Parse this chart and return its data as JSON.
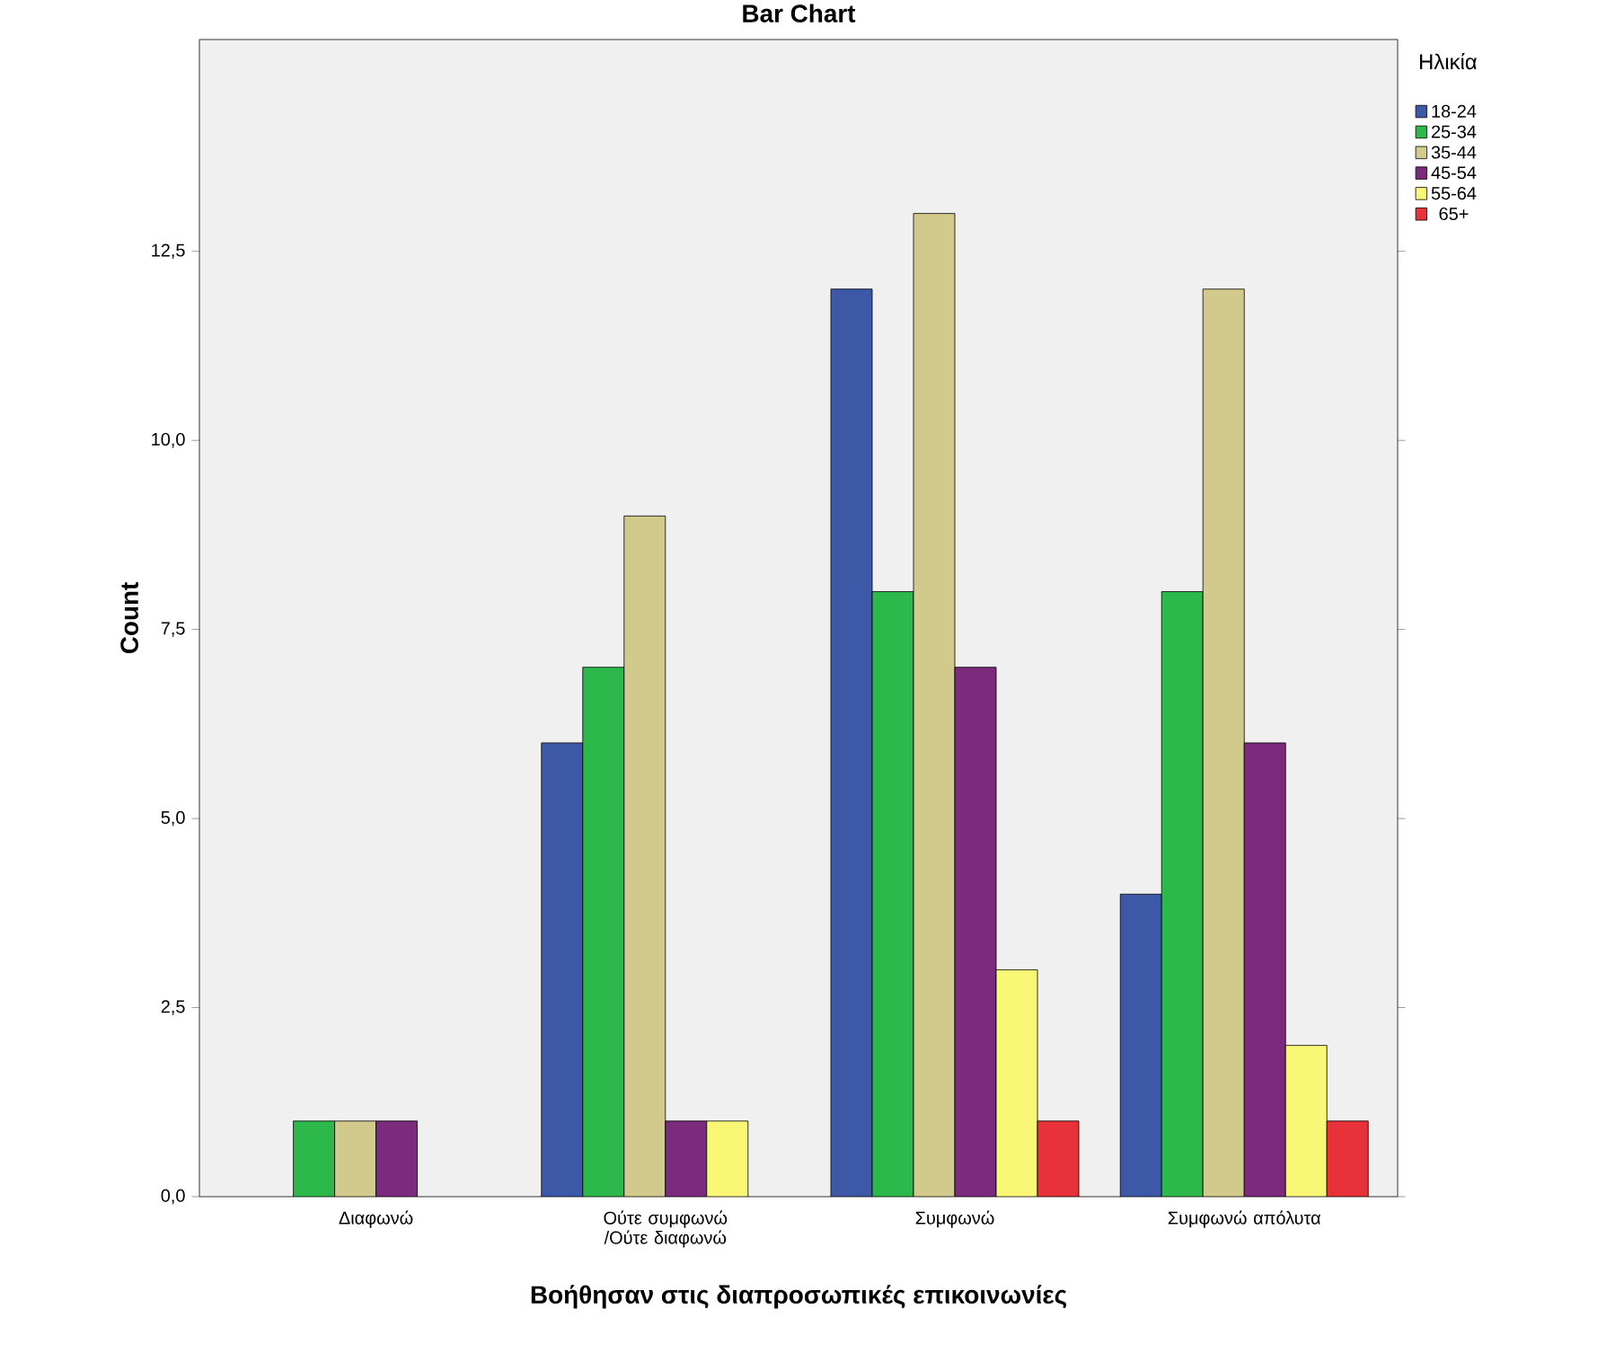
{
  "chart_data": {
    "type": "bar",
    "title": "Bar Chart",
    "xlabel": "Βοήθησαν στις διαπροσωπικές επικοινωνίες",
    "ylabel": "Count",
    "legend_title": "Ηλικία",
    "legend": "top right",
    "grid": false,
    "categories": [
      "Διαφωνώ",
      "Ούτε συμφωνώ /Ούτε διαφωνώ",
      "Συμφωνώ",
      "Συμφωνώ απόλυτα"
    ],
    "ylim": [
      0,
      15.3
    ],
    "yticks": [
      {
        "value": 0,
        "label": "0,0"
      },
      {
        "value": 2.5,
        "label": "2,5"
      },
      {
        "value": 5,
        "label": "5,0"
      },
      {
        "value": 7.5,
        "label": "7,5"
      },
      {
        "value": 10,
        "label": "10,0"
      },
      {
        "value": 12.5,
        "label": "12,5"
      }
    ],
    "series": [
      {
        "name": "18-24",
        "color": "#3e58a8",
        "values": [
          null,
          6,
          12,
          4
        ]
      },
      {
        "name": "25-34",
        "color": "#2db84c",
        "values": [
          1,
          7,
          8,
          8
        ]
      },
      {
        "name": "35-44",
        "color": "#d2c98d",
        "values": [
          1,
          9,
          13,
          12
        ]
      },
      {
        "name": "45-54",
        "color": "#7b2a7e",
        "values": [
          1,
          1,
          7,
          6
        ]
      },
      {
        "name": "55-64",
        "color": "#fbf776",
        "values": [
          null,
          1,
          3,
          2
        ]
      },
      {
        "name": "65+",
        "color": "#e8323a",
        "values": [
          null,
          null,
          1,
          1
        ]
      }
    ]
  }
}
